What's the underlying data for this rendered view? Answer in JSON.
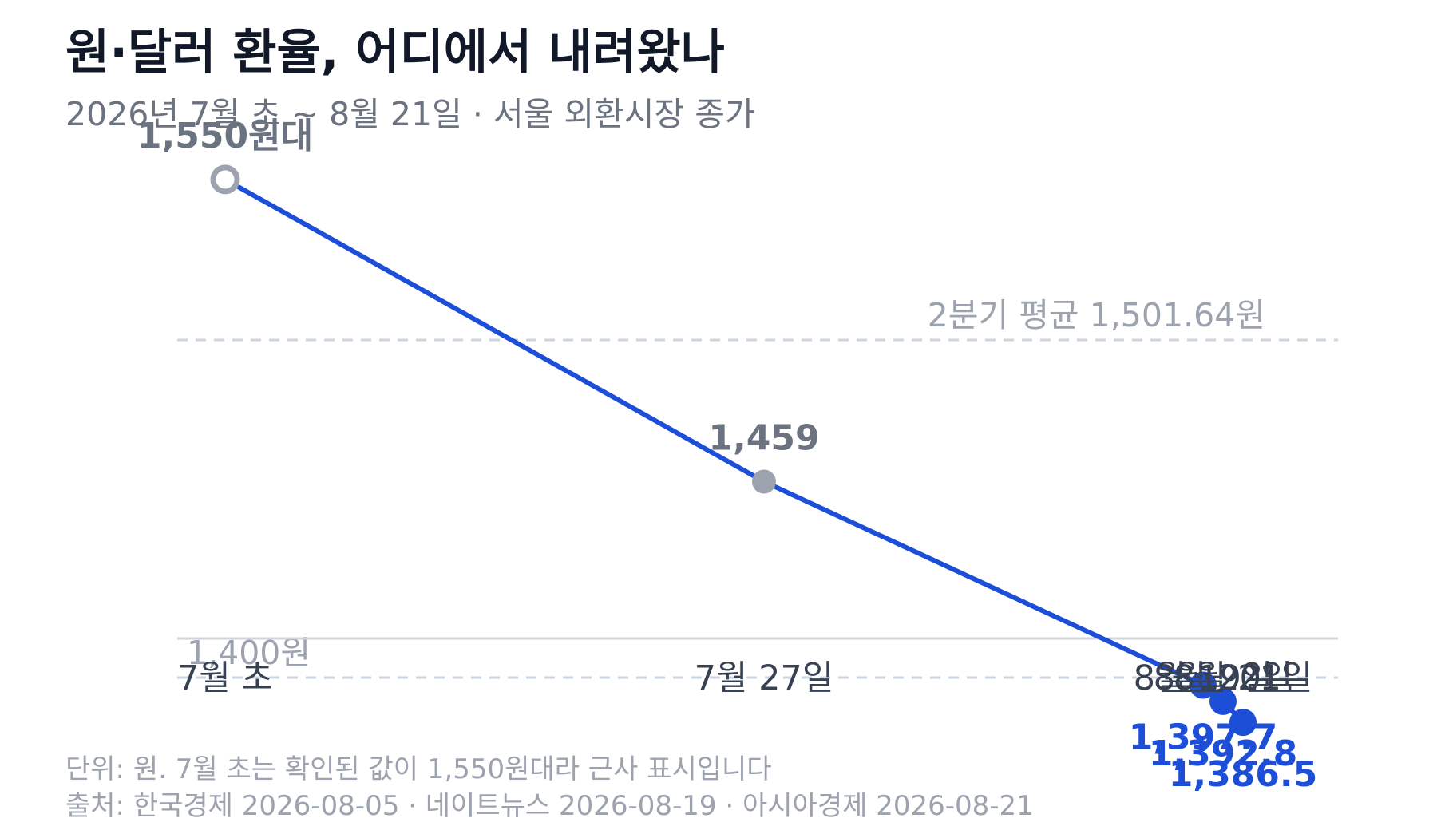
{
  "title": "원·달러 환율, 어디에서 내려왔나",
  "subtitle": "2026년 7월 초 ~ 8월 21일 · 서울 외환시장 종가",
  "chart_data": {
    "type": "line",
    "categories": [
      "7월 초",
      "7월 27일",
      "8월 19일",
      "8월 20일",
      "8월 21일"
    ],
    "x_order": [
      0,
      27,
      49,
      50,
      51
    ],
    "values": [
      1550,
      1459,
      1397.7,
      1392.8,
      1386.5
    ],
    "data_labels": [
      "1,550원대",
      "1,459",
      "1,397.7",
      "1,392.8",
      "1,386.5"
    ],
    "point_styles": [
      "open",
      "gray",
      "blue",
      "blue",
      "blue"
    ],
    "ylim": [
      1350,
      1580
    ],
    "reference_lines": [
      {
        "value": 1501.64,
        "label": "2분기 평균 1,501.64원"
      },
      {
        "value": 1400,
        "label": "1,400원"
      }
    ],
    "grid": false,
    "colors": {
      "line": "#1d4ed8",
      "highlight": "#1d4ed8",
      "muted_point": "#9ca3af",
      "muted_label": "#6b7280",
      "reference": "#cbd5e1",
      "axis": "#d1d5db"
    }
  },
  "footnotes": {
    "unit_note": "단위: 원. 7월 초는 확인된 값이 1,550원대라 근사 표시입니다",
    "source": "출처: 한국경제 2026-08-05 · 네이트뉴스 2026-08-19 · 아시아경제 2026-08-21"
  }
}
